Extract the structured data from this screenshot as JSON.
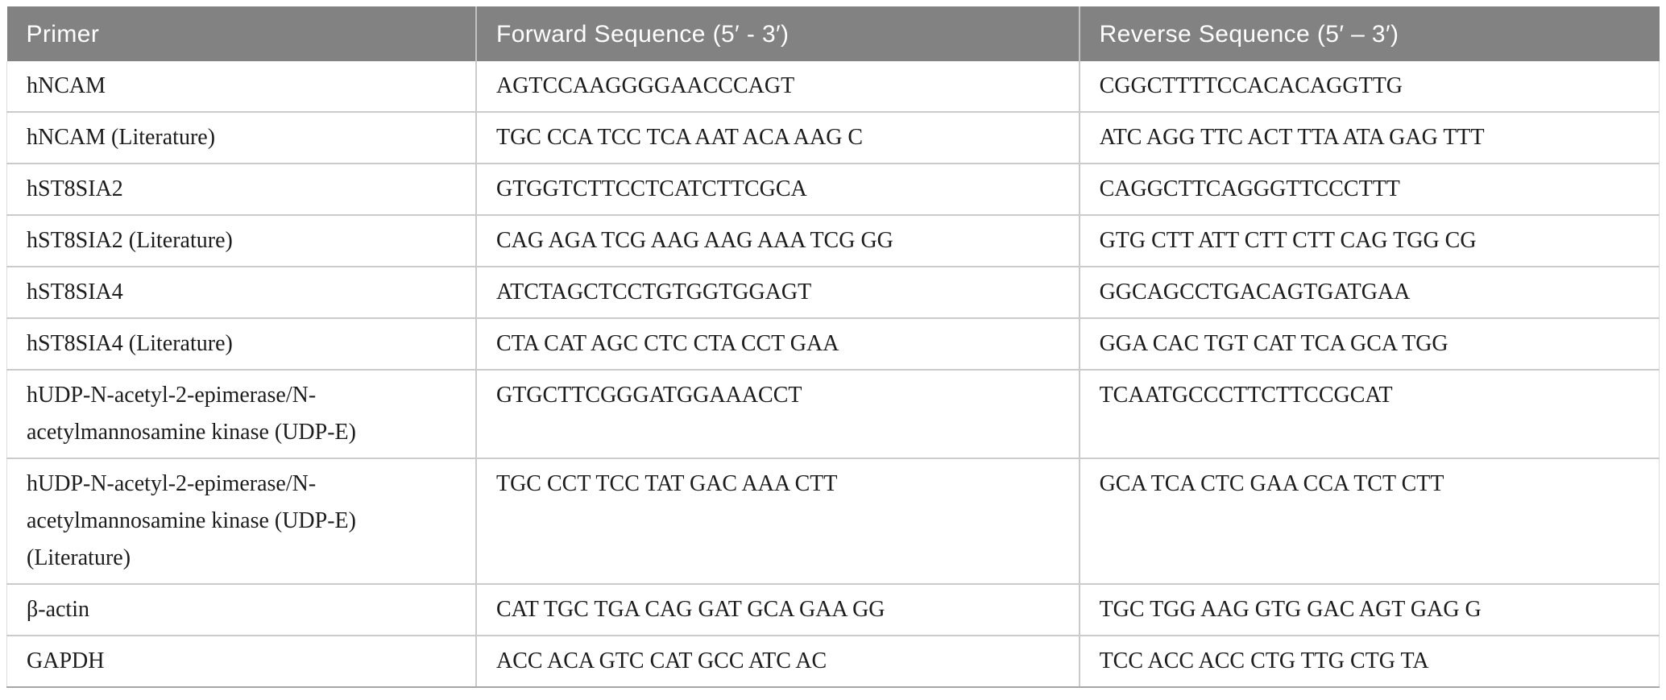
{
  "table": {
    "columns": [
      "Primer",
      "Forward Sequence (5′ - 3′)",
      "Reverse Sequence (5′ – 3′)"
    ],
    "rows": [
      {
        "primer": "hNCAM",
        "forward": "AGTCCAAGGGGAACCCAGT",
        "reverse": "CGGCTTTTCCACACAGGTTG"
      },
      {
        "primer": "hNCAM (Literature)",
        "forward": "TGC CCA TCC TCA AAT ACA AAG C",
        "reverse": "ATC AGG TTC ACT TTA ATA GAG TTT"
      },
      {
        "primer": "hST8SIA2",
        "forward": "GTGGTCTTCCTCATCTTCGCA",
        "reverse": "CAGGCTTCAGGGTTCCCTTT"
      },
      {
        "primer": "hST8SIA2 (Literature)",
        "forward": "CAG AGA TCG AAG AAG AAA TCG GG",
        "reverse": "GTG CTT ATT CTT CTT CAG TGG CG"
      },
      {
        "primer": "hST8SIA4",
        "forward": "ATCTAGCTCCTGTGGTGGAGT",
        "reverse": "GGCAGCCTGACAGTGATGAA"
      },
      {
        "primer": "hST8SIA4 (Literature)",
        "forward": "CTA CAT AGC CTC CTA CCT GAA",
        "reverse": "GGA CAC TGT CAT TCA GCA TGG"
      },
      {
        "primer": "hUDP-N-acetyl-2-epimerase/N-\nacetylmannosamine kinase (UDP-E)",
        "forward": "GTGCTTCGGGATGGAAACCT",
        "reverse": "TCAATGCCCTTCTTCCGCAT"
      },
      {
        "primer": "hUDP-N-acetyl-2-epimerase/N-\nacetylmannosamine kinase (UDP-E)\n(Literature)",
        "forward": "TGC CCT TCC TAT GAC AAA CTT",
        "reverse": "GCA TCA CTC GAA CCA TCT CTT"
      },
      {
        "primer": "β-actin",
        "forward": "CAT TGC TGA CAG GAT GCA GAA GG",
        "reverse": "TGC TGG AAG GTG GAC AGT GAG G"
      },
      {
        "primer": "GAPDH",
        "forward": "ACC ACA GTC CAT GCC ATC AC",
        "reverse": "TCC ACC ACC CTG TTG CTG TA"
      }
    ]
  },
  "colors": {
    "header_background": "#828282",
    "header_text": "#ffffff",
    "row_divider": "#cbcbcb",
    "bottom_border": "#a6a6a6",
    "body_text": "#1c1c1c"
  }
}
